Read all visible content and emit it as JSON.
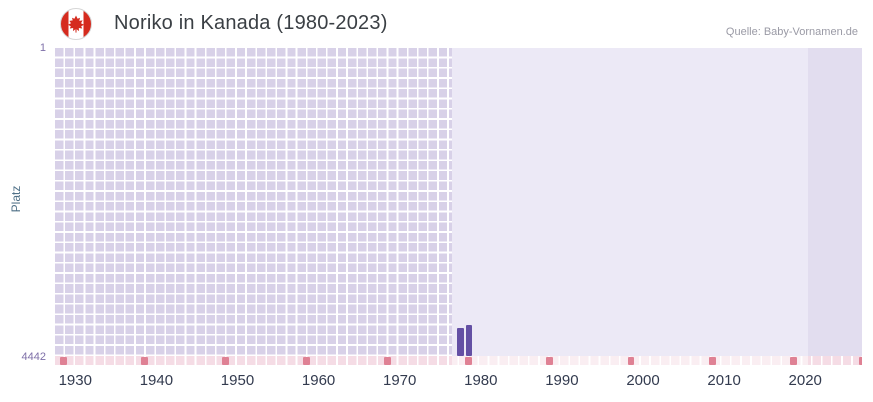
{
  "header": {
    "title": "Noriko in Kanada (1980-2023)",
    "source": "Quelle: Baby-Vornamen.de"
  },
  "axis": {
    "y_label": "Platz",
    "y_top_tick": "1",
    "y_bottom_tick": "4442"
  },
  "icons": {
    "flag": "canada-flag-icon"
  },
  "chart_data": {
    "type": "bar",
    "title": "Noriko in Kanada (1980-2023)",
    "source": "Quelle: Baby-Vornamen.de",
    "xlabel": "",
    "ylabel": "Platz",
    "y_range": [
      1,
      4442
    ],
    "y_axis_inverted": true,
    "y_tick_labels": [
      "1",
      "4442"
    ],
    "x_tick_years": [
      1930,
      1940,
      1950,
      1960,
      1970,
      1980,
      1990,
      2000,
      2010,
      2020
    ],
    "x_visible_range": [
      1927.5,
      2027
    ],
    "highlight_range": [
      1976.5,
      2020.3
    ],
    "grid": true,
    "legend": false,
    "bars": [
      {
        "year": 1977,
        "rank": 4040
      },
      {
        "year": 1978,
        "rank": 4000
      }
    ],
    "bottom_marker_years": [
      1928,
      1938,
      1948,
      1958,
      1968,
      1978,
      1988,
      1998,
      2008,
      2018,
      2026.5
    ],
    "colors": {
      "bar": "#6450a4",
      "grid_cell": "#d8d1e8",
      "gridline": "#ffffff",
      "highlight_bg": "#ece9f6",
      "right_band_bg": "#e2ddef",
      "strip_pink": "#f5dce5",
      "marker_pink": "#df8194",
      "title_text": "#3a3f44",
      "source_text": "#9a9aa5",
      "x_tick_text": "#333b4f",
      "y_tick_text": "#7e6fa8",
      "y_title_text": "#4f7087",
      "flag_red": "#d52b1e"
    }
  }
}
